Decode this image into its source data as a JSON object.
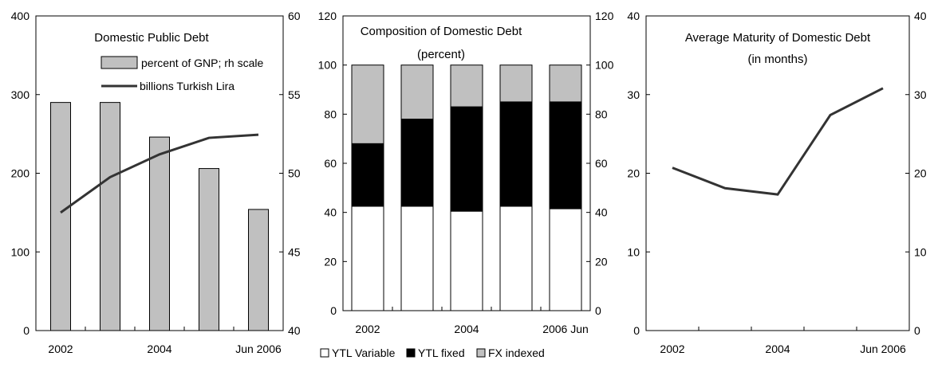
{
  "chart_data": [
    {
      "type": "bar",
      "title": "Domestic Public Debt",
      "x_tick_labels": [
        "2002",
        "2004",
        "Jun 2006"
      ],
      "categories": [
        "2002",
        "2003",
        "2004",
        "2005",
        "Jun 2006"
      ],
      "y_left": {
        "range": [
          0,
          400
        ],
        "ticks": [
          "0",
          "100",
          "200",
          "300",
          "400"
        ]
      },
      "y_right": {
        "range": [
          40,
          60
        ],
        "ticks": [
          "40",
          "45",
          "50",
          "55",
          "60"
        ]
      },
      "series": [
        {
          "name": "percent of GNP; rh scale",
          "type": "bar",
          "axis": "right",
          "values": [
            54.5,
            54.5,
            52.3,
            50.3,
            47.7
          ]
        },
        {
          "name": "billions Turkish Lira",
          "type": "line",
          "axis": "left",
          "values": [
            150,
            195,
            224,
            245,
            249
          ]
        }
      ],
      "colors": {
        "bar": "#c0c0c0",
        "line": "#333333"
      }
    },
    {
      "type": "bar",
      "stacked": true,
      "title": "Composition of Domestic Debt",
      "subtitle": "(percent)",
      "x_tick_labels": [
        "2002",
        "2004",
        "2006 Jun"
      ],
      "categories": [
        "2002",
        "2003",
        "2004",
        "2005",
        "2006 Jun"
      ],
      "y_left": {
        "range": [
          0,
          120
        ],
        "ticks": [
          "0",
          "20",
          "40",
          "60",
          "80",
          "100",
          "120"
        ]
      },
      "y_right": {
        "range": [
          0,
          120
        ],
        "ticks": [
          "0",
          "20",
          "40",
          "60",
          "80",
          "100",
          "120"
        ]
      },
      "series": [
        {
          "name": "YTL Variable",
          "values": [
            42.5,
            42.5,
            40.5,
            42.5,
            41.5
          ],
          "color": "#ffffff"
        },
        {
          "name": "YTL fixed",
          "values": [
            25.5,
            35.5,
            42.5,
            42.5,
            43.5
          ],
          "color": "#000000"
        },
        {
          "name": "FX indexed",
          "values": [
            32,
            22,
            17,
            15,
            15
          ],
          "color": "#c0c0c0"
        }
      ]
    },
    {
      "type": "line",
      "title": "Average Maturity of Domestic Debt",
      "subtitle": "(in months)",
      "x_tick_labels": [
        "2002",
        "2004",
        "Jun 2006"
      ],
      "categories": [
        "2002",
        "2003",
        "2004",
        "2005",
        "Jun 2006"
      ],
      "y_left": {
        "range": [
          0,
          40
        ],
        "ticks": [
          "0",
          "10",
          "20",
          "30",
          "40"
        ]
      },
      "y_right": {
        "range": [
          0,
          40
        ],
        "ticks": [
          "0",
          "10",
          "20",
          "30",
          "40"
        ]
      },
      "series": [
        {
          "name": "",
          "values": [
            20.7,
            18.1,
            17.3,
            27.4,
            30.8
          ],
          "color": "#333333"
        }
      ]
    }
  ]
}
